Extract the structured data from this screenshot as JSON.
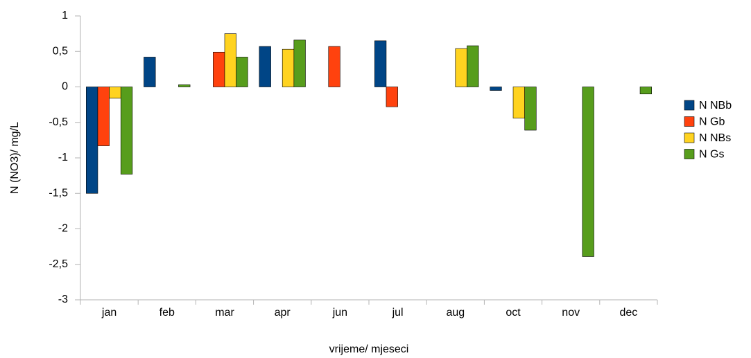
{
  "chart_data": {
    "type": "bar",
    "x_label": "vrijeme/ mjeseci",
    "y_label": "N (NO3)/ mg/L",
    "categories": [
      "jan",
      "feb",
      "mar",
      "apr",
      "jun",
      "jul",
      "aug",
      "oct",
      "nov",
      "dec"
    ],
    "series": [
      {
        "name": "N NBb",
        "color": "#004586",
        "values": [
          -1.5,
          0.42,
          null,
          0.57,
          null,
          0.65,
          null,
          -0.05,
          null,
          null
        ]
      },
      {
        "name": "N Gb",
        "color": "#ff420e",
        "values": [
          -0.83,
          null,
          0.49,
          null,
          0.57,
          -0.28,
          null,
          null,
          null,
          null
        ]
      },
      {
        "name": "N NBs",
        "color": "#ffd320",
        "values": [
          -0.16,
          null,
          0.75,
          0.53,
          null,
          null,
          0.54,
          -0.44,
          null,
          null
        ]
      },
      {
        "name": "N Gs",
        "color": "#579d1c",
        "values": [
          -1.23,
          0.03,
          0.42,
          0.66,
          null,
          null,
          0.58,
          -0.61,
          -2.39,
          -0.1
        ]
      }
    ],
    "ylim": [
      -3,
      1
    ],
    "yticks": [
      -3,
      {
        "value": -2.5,
        "label": "-2,5"
      },
      -2,
      {
        "value": -1.5,
        "label": "-1,5"
      },
      -1,
      {
        "value": -0.5,
        "label": "-0,5"
      },
      0,
      {
        "value": 0.5,
        "label": "0,5"
      },
      1
    ],
    "grid": false,
    "legend": "right"
  }
}
